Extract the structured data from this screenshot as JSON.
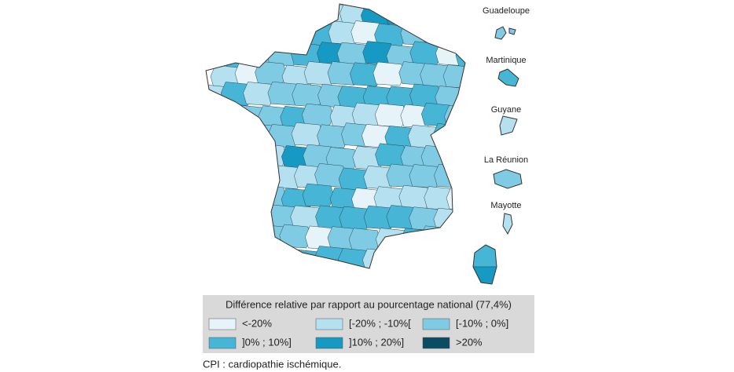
{
  "territories": [
    "Guadeloupe",
    "Martinique",
    "Guyane",
    "La Réunion",
    "Mayotte"
  ],
  "legend": {
    "title": "Différence relative par rapport au pourcentage national (77,4%)",
    "items": [
      {
        "label": "<-20%",
        "color": "#e6f3f8"
      },
      {
        "label": "[-20% ; -10%[",
        "color": "#b5e0ef"
      },
      {
        "label": "[-10% ; 0%]",
        "color": "#7fcbe4"
      },
      {
        "label": "]0% ; 10%]",
        "color": "#46b5d6"
      },
      {
        "label": "]10% ; 20%]",
        "color": "#169ac3"
      },
      {
        "label": ">20%",
        "color": "#0b4b63"
      }
    ]
  },
  "footnote": "CPI : cardiopathie ischémique."
}
